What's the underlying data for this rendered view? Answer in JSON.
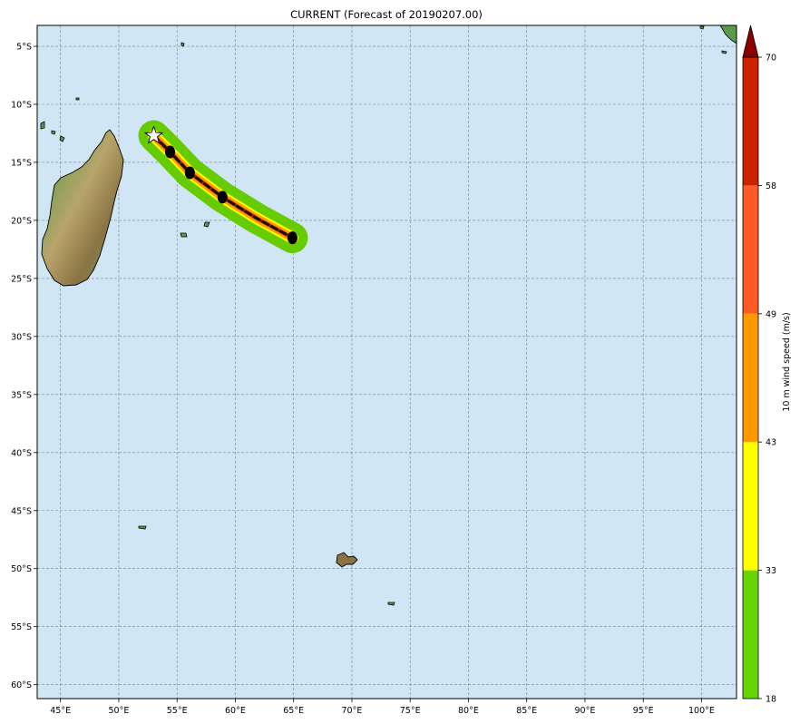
{
  "title": "CURRENT (Forecast of 20190207.00)",
  "map": {
    "lon_range": [
      43,
      103
    ],
    "lat_range": [
      -61.2,
      -3.2
    ],
    "ocean_color": "#d0e6f5",
    "land_colors": [
      "#3f8f3c",
      "#b8a46a",
      "#7e6a3c"
    ],
    "gridlines": true,
    "lon_ticks": [
      45,
      50,
      55,
      60,
      65,
      70,
      75,
      80,
      85,
      90,
      95,
      100
    ],
    "lon_tick_labels": [
      "45°E",
      "50°E",
      "55°E",
      "60°E",
      "65°E",
      "70°E",
      "75°E",
      "80°E",
      "85°E",
      "90°E",
      "95°E",
      "100°E"
    ],
    "lat_ticks": [
      -5,
      -10,
      -15,
      -20,
      -25,
      -30,
      -35,
      -40,
      -45,
      -50,
      -55,
      -60
    ],
    "lat_tick_labels": [
      "5°S",
      "10°S",
      "15°S",
      "20°S",
      "25°S",
      "30°S",
      "35°S",
      "40°S",
      "45°S",
      "50°S",
      "55°S",
      "60°S"
    ]
  },
  "track": {
    "start_marker": "star-icon",
    "points": [
      {
        "lon": 53.0,
        "lat": -12.7
      },
      {
        "lon": 54.4,
        "lat": -14.1
      },
      {
        "lon": 56.1,
        "lat": -15.9
      },
      {
        "lon": 58.9,
        "lat": -18.0
      },
      {
        "lon": 61.8,
        "lat": -19.8
      },
      {
        "lon": 64.9,
        "lat": -21.5
      }
    ],
    "position_markers": [
      {
        "lon": 54.4,
        "lat": -14.1
      },
      {
        "lon": 56.1,
        "lat": -15.9
      },
      {
        "lon": 58.9,
        "lat": -18.0
      },
      {
        "lon": 64.9,
        "lat": -21.5
      }
    ],
    "wind_band_colors": [
      "#66cc00",
      "#ffff00",
      "#ff9900",
      "#cc2200"
    ]
  },
  "colorbar": {
    "label": "10 m wind speed (m/s)",
    "levels": [
      18,
      33,
      43,
      49,
      58,
      70
    ],
    "level_labels": [
      "18",
      "33",
      "43",
      "49",
      "58",
      "70"
    ],
    "colors": [
      "#66d400",
      "#ffff00",
      "#ff9900",
      "#ff5a25",
      "#cc2200"
    ],
    "extend_color": "#8b0000"
  }
}
